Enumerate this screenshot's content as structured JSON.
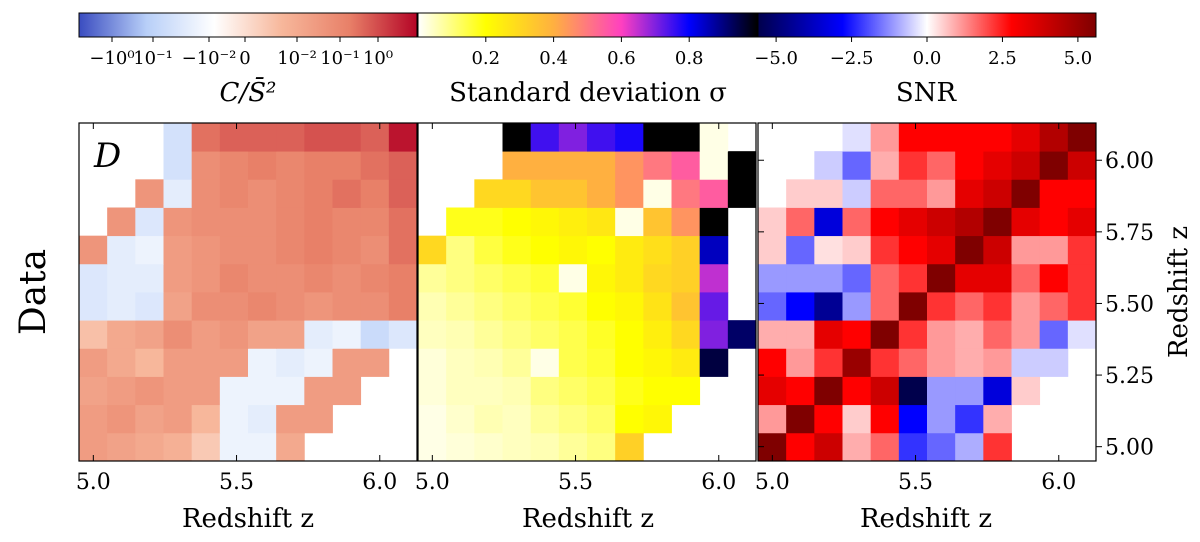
{
  "row_label": "Data",
  "panel_tag": "D",
  "x_axis": {
    "label": "Redshift z",
    "ticks": [
      5.0,
      5.5,
      6.0
    ],
    "tick_labels": [
      "5.0",
      "5.5",
      "6.0"
    ],
    "range": [
      4.95,
      6.13
    ]
  },
  "y_axis": {
    "label": "Redshift z",
    "ticks": [
      5.0,
      5.25,
      5.5,
      5.75,
      6.0
    ],
    "tick_labels": [
      "5.00",
      "5.25",
      "5.50",
      "5.75",
      "6.00"
    ],
    "range": [
      4.95,
      6.13
    ]
  },
  "colorbars": [
    {
      "name": "covariance",
      "label": "C/S̄²",
      "colors": [
        "#3a4cc0",
        "#b8cff8",
        "#ffffff",
        "#f7b79b",
        "#e88068",
        "#b40426"
      ],
      "tick_labels": [
        "−10⁰",
        "10⁻¹",
        "−10⁻²",
        "0",
        "10⁻²",
        "10⁻¹",
        "10⁰"
      ]
    },
    {
      "name": "std",
      "label": "Standard deviation σ",
      "colors": [
        "#ffffff",
        "#ffff00",
        "#ffb040",
        "#ff40c0",
        "#0000ff",
        "#000000"
      ],
      "tick_labels": [
        "0.2",
        "0.4",
        "0.6",
        "0.8"
      ]
    },
    {
      "name": "snr",
      "label": "SNR",
      "colors": [
        "#00004c",
        "#0000ff",
        "#ffffff",
        "#ff0000",
        "#7f0000"
      ],
      "tick_labels": [
        "−5.0",
        "−2.5",
        "0.0",
        "2.5",
        "5.0"
      ]
    }
  ],
  "chart_data": {
    "type": "heatmap",
    "x_bins": [
      5.0,
      5.1,
      5.2,
      5.3,
      5.4,
      5.5,
      5.6,
      5.7,
      5.8,
      5.9,
      6.0,
      6.1
    ],
    "y_bins": [
      5.0,
      5.1,
      5.2,
      5.3,
      5.4,
      5.5,
      5.6,
      5.7,
      5.8,
      5.9,
      6.0,
      6.1
    ],
    "panels": [
      {
        "name": "covariance",
        "colormap": "coolwarm",
        "vmin": -1,
        "vmax": 1,
        "matrix": [
          [
            0.4,
            0.35,
            0.3,
            0.25,
            0.1,
            -0.3,
            -0.3,
            0.3,
            null,
            null,
            null,
            null
          ],
          [
            0.4,
            0.45,
            0.35,
            0.4,
            0.2,
            -0.3,
            -0.35,
            0.4,
            0.4,
            null,
            null,
            null
          ],
          [
            0.35,
            0.4,
            0.45,
            0.4,
            0.4,
            -0.3,
            -0.3,
            -0.3,
            0.4,
            0.4,
            null,
            null
          ],
          [
            0.4,
            0.3,
            0.2,
            0.4,
            0.4,
            0.4,
            -0.3,
            -0.35,
            -0.3,
            0.4,
            0.4,
            null
          ],
          [
            0.15,
            0.3,
            0.35,
            0.5,
            0.4,
            0.45,
            0.35,
            0.35,
            -0.35,
            -0.3,
            -0.5,
            -0.4
          ],
          [
            -0.4,
            -0.35,
            -0.4,
            0.35,
            0.5,
            0.5,
            0.55,
            0.5,
            0.45,
            0.5,
            0.5,
            0.6
          ],
          [
            -0.4,
            -0.35,
            -0.35,
            0.4,
            0.45,
            0.55,
            0.5,
            0.5,
            0.55,
            0.5,
            0.55,
            0.6
          ],
          [
            0.45,
            -0.35,
            -0.3,
            0.4,
            0.45,
            0.5,
            0.5,
            0.55,
            0.6,
            0.55,
            0.5,
            0.65
          ],
          [
            null,
            0.45,
            -0.4,
            0.45,
            0.5,
            0.5,
            0.5,
            0.55,
            0.6,
            0.55,
            0.55,
            0.65
          ],
          [
            null,
            null,
            0.45,
            -0.35,
            0.5,
            0.55,
            0.5,
            0.55,
            0.6,
            0.65,
            0.6,
            0.7
          ],
          [
            null,
            null,
            null,
            -0.45,
            0.5,
            0.55,
            0.6,
            0.55,
            0.6,
            0.6,
            0.65,
            0.7
          ],
          [
            null,
            null,
            null,
            -0.45,
            0.65,
            0.7,
            0.7,
            0.7,
            0.75,
            0.75,
            0.7,
            0.95
          ]
        ]
      },
      {
        "name": "std",
        "colormap": "gnuplot2_r",
        "vmin": 0.0,
        "vmax": 1.0,
        "matrix": [
          [
            0.02,
            0.03,
            0.04,
            0.05,
            0.06,
            0.08,
            0.1,
            0.32,
            null,
            null,
            null,
            null
          ],
          [
            0.02,
            0.04,
            0.06,
            0.05,
            0.08,
            0.1,
            0.12,
            0.2,
            0.22,
            null,
            null,
            null
          ],
          [
            0.03,
            0.05,
            0.05,
            0.06,
            0.1,
            0.12,
            0.14,
            0.18,
            0.2,
            0.2,
            null,
            null
          ],
          [
            0.03,
            0.05,
            0.06,
            0.08,
            0.02,
            0.14,
            0.16,
            0.2,
            0.22,
            0.25,
            0.95,
            null
          ],
          [
            0.05,
            0.06,
            0.08,
            0.1,
            0.12,
            0.14,
            0.17,
            0.2,
            0.24,
            0.3,
            0.7,
            0.92
          ],
          [
            0.06,
            0.08,
            0.1,
            0.12,
            0.14,
            0.16,
            0.2,
            0.22,
            0.27,
            0.35,
            0.72,
            null
          ],
          [
            0.08,
            0.1,
            0.12,
            0.14,
            0.16,
            0.02,
            0.22,
            0.25,
            0.3,
            0.32,
            0.65,
            null
          ],
          [
            0.3,
            0.1,
            0.15,
            0.18,
            0.2,
            0.22,
            0.2,
            0.25,
            0.28,
            0.32,
            0.85,
            null
          ],
          [
            null,
            0.18,
            0.18,
            0.2,
            0.22,
            0.24,
            0.26,
            0.02,
            0.35,
            0.45,
            1.0,
            null
          ],
          [
            null,
            null,
            0.3,
            0.3,
            0.35,
            0.35,
            0.4,
            0.45,
            0.02,
            0.5,
            0.55,
            1.0
          ],
          [
            null,
            null,
            null,
            0.4,
            0.4,
            0.4,
            0.4,
            0.45,
            0.5,
            0.55,
            0.02,
            1.0
          ],
          [
            null,
            null,
            null,
            1.0,
            0.75,
            0.7,
            0.75,
            0.78,
            1.0,
            1.0,
            0.02,
            null
          ]
        ]
      },
      {
        "name": "snr",
        "colormap": "seismic",
        "vmin": -5.0,
        "vmax": 5.0,
        "matrix": [
          [
            5.0,
            2.5,
            3.5,
            0.8,
            1.5,
            -2.0,
            -1.5,
            -0.8,
            2.0,
            null,
            null,
            null
          ],
          [
            1.0,
            5.0,
            2.5,
            0.5,
            2.5,
            -2.5,
            -1.0,
            -2.0,
            0.8,
            null,
            null,
            null
          ],
          [
            3.0,
            2.5,
            5.0,
            2.5,
            3.5,
            -5.0,
            -1.0,
            -1.0,
            -3.0,
            0.5,
            null,
            null
          ],
          [
            2.5,
            1.0,
            2.0,
            4.5,
            2.0,
            1.5,
            1.0,
            0.8,
            1.0,
            -0.5,
            -0.5,
            null
          ],
          [
            0.8,
            0.8,
            3.0,
            2.5,
            5.0,
            2.0,
            1.0,
            0.8,
            1.5,
            1.0,
            -1.5,
            -0.3
          ],
          [
            -1.5,
            -2.5,
            -4.0,
            -1.0,
            1.5,
            5.0,
            2.0,
            1.5,
            2.0,
            1.0,
            1.5,
            2.0
          ],
          [
            -1.0,
            -1.0,
            -1.0,
            -1.5,
            1.5,
            2.0,
            5.0,
            3.0,
            3.0,
            1.5,
            2.5,
            2.0
          ],
          [
            0.5,
            -1.5,
            0.3,
            0.5,
            2.0,
            2.5,
            3.0,
            5.0,
            3.5,
            1.0,
            1.0,
            2.0
          ],
          [
            0.5,
            1.5,
            -3.0,
            1.5,
            2.5,
            3.0,
            3.5,
            4.0,
            5.0,
            3.0,
            2.5,
            3.0
          ],
          [
            null,
            0.5,
            0.5,
            -0.5,
            1.5,
            1.5,
            1.0,
            3.0,
            3.5,
            5.0,
            2.5,
            2.5
          ],
          [
            null,
            null,
            -0.5,
            -1.5,
            0.8,
            2.0,
            1.5,
            2.5,
            3.0,
            3.5,
            5.0,
            3.5
          ],
          [
            null,
            null,
            null,
            -0.3,
            1.0,
            2.5,
            2.5,
            2.5,
            2.5,
            3.0,
            4.0,
            5.0
          ]
        ]
      }
    ]
  }
}
